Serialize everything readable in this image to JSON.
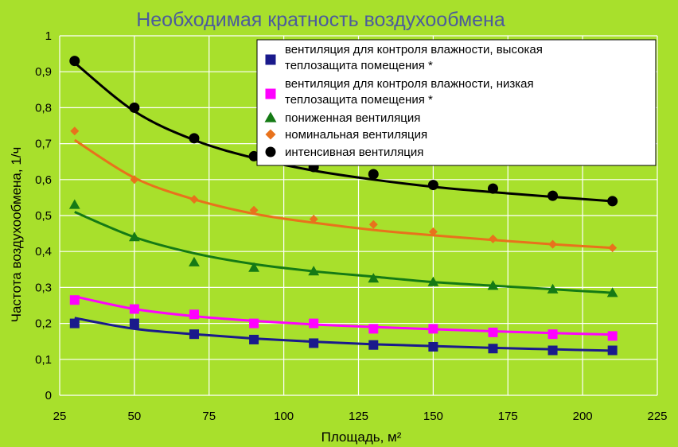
{
  "chart_data": {
    "type": "scatter",
    "title": "Необходимая кратность воздухообмена",
    "xlabel": "Площадь, м²",
    "ylabel": "Частота воздухообмена, 1/ч",
    "xlim": [
      25,
      225
    ],
    "ylim": [
      0,
      1
    ],
    "x_ticks": [
      "25",
      "50",
      "75",
      "100",
      "125",
      "150",
      "175",
      "200",
      "225"
    ],
    "y_ticks": [
      "0",
      "0,1",
      "0,2",
      "0,3",
      "0,4",
      "0,5",
      "0,6",
      "0,7",
      "0,8",
      "0,9",
      "1"
    ],
    "grid": true,
    "legend_position": "top-right",
    "x": [
      30,
      50,
      70,
      90,
      110,
      130,
      150,
      170,
      190,
      210
    ],
    "series": [
      {
        "name_lines": [
          "вентиляция для контроля влажности, высокая",
          "теплозащита помещения *"
        ],
        "color": "#1a1a8c",
        "marker": "square",
        "values": [
          0.2,
          0.2,
          0.17,
          0.155,
          0.145,
          0.14,
          0.135,
          0.13,
          0.125,
          0.125
        ],
        "trend": [
          0.215,
          0.185,
          0.17,
          0.158,
          0.149,
          0.142,
          0.137,
          0.132,
          0.128,
          0.124
        ]
      },
      {
        "name_lines": [
          "вентиляция для контроля влажности, низкая",
          "теплозащита помещения *"
        ],
        "color": "#ff00ff",
        "marker": "square",
        "values": [
          0.265,
          0.24,
          0.225,
          0.2,
          0.2,
          0.185,
          0.185,
          0.175,
          0.17,
          0.165
        ],
        "trend": [
          0.275,
          0.24,
          0.22,
          0.207,
          0.197,
          0.19,
          0.184,
          0.178,
          0.173,
          0.169
        ]
      },
      {
        "name_lines": [
          "пониженная вентиляция"
        ],
        "color": "#157a15",
        "marker": "triangle",
        "values": [
          0.53,
          0.44,
          0.37,
          0.355,
          0.345,
          0.325,
          0.315,
          0.305,
          0.295,
          0.285
        ],
        "trend": [
          0.51,
          0.44,
          0.395,
          0.365,
          0.345,
          0.33,
          0.315,
          0.305,
          0.295,
          0.285
        ]
      },
      {
        "name_lines": [
          "номинальная вентиляция"
        ],
        "color": "#e8721c",
        "marker": "diamond",
        "values": [
          0.735,
          0.6,
          0.545,
          0.515,
          0.49,
          0.475,
          0.455,
          0.435,
          0.42,
          0.41
        ],
        "trend": [
          0.71,
          0.605,
          0.545,
          0.505,
          0.48,
          0.46,
          0.445,
          0.432,
          0.42,
          0.41
        ]
      },
      {
        "name_lines": [
          "интенсивная вентиляция"
        ],
        "color": "#000000",
        "marker": "circle",
        "values": [
          0.93,
          0.8,
          0.715,
          0.665,
          0.635,
          0.615,
          0.585,
          0.575,
          0.555,
          0.54
        ],
        "trend": [
          0.925,
          0.79,
          0.71,
          0.66,
          0.625,
          0.6,
          0.58,
          0.565,
          0.552,
          0.54
        ]
      }
    ]
  }
}
